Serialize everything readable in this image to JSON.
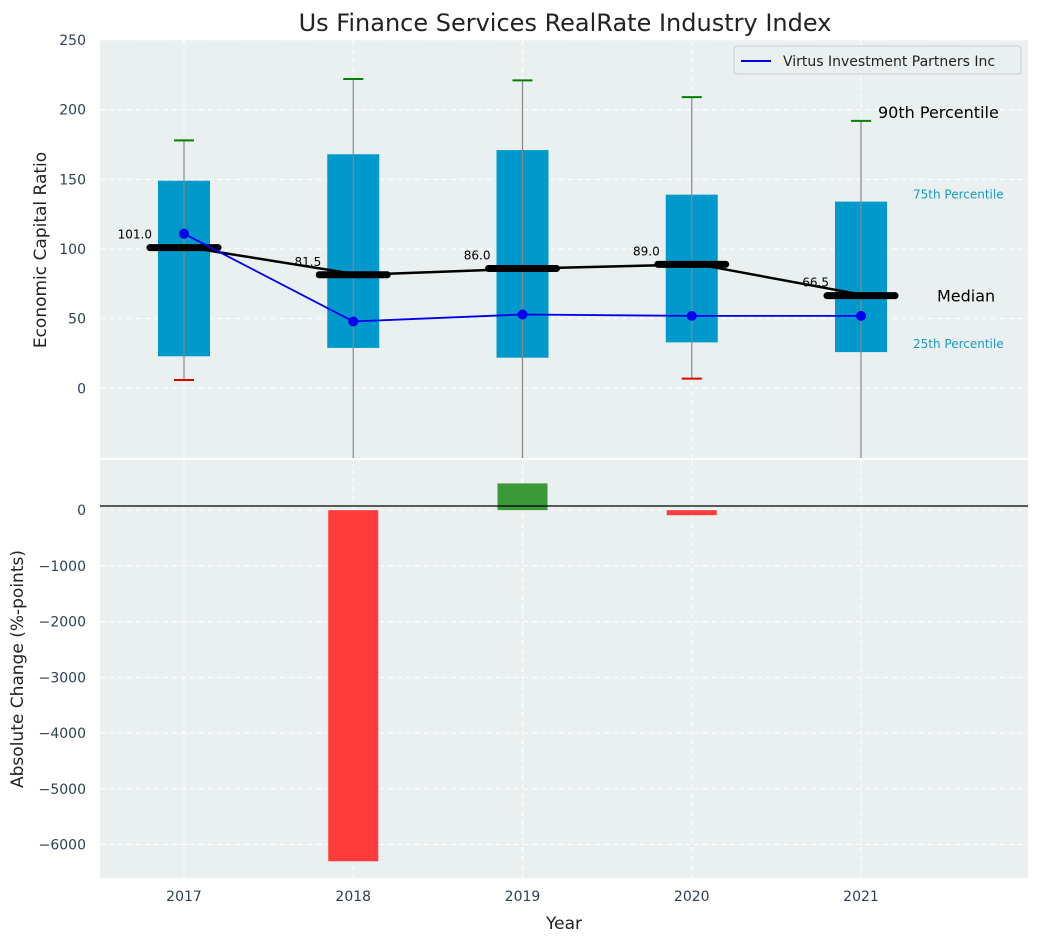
{
  "colors": {
    "panel_bg": "#eaeff0",
    "grid": "#ffffff",
    "box": "#0099cc",
    "whisker": "#888888",
    "median_line": "#000000",
    "company_line": "#0000ee",
    "cap_top": "#008000",
    "cap_low": "#dd0000",
    "pos_bar": "#3a9a3a",
    "neg_bar": "#ff3b3b",
    "annotation_small": "#1a9bbf"
  },
  "chart_data": {
    "type": "box",
    "title": "Us Finance Services RealRate Industry Index",
    "xlabel": "Year",
    "categories": [
      "2017",
      "2018",
      "2019",
      "2020",
      "2021"
    ],
    "top_panel": {
      "ylabel": "Economic Capital Ratio",
      "ylim": [
        -50,
        250
      ],
      "yticks": [
        "0",
        "50",
        "100",
        "150",
        "200",
        "250"
      ],
      "grid": true,
      "p90": [
        178,
        222,
        221,
        209,
        192
      ],
      "p75": [
        149,
        168,
        171,
        139,
        134
      ],
      "median": [
        101.0,
        81.5,
        86.0,
        89.0,
        66.5
      ],
      "median_labels": [
        "101.0",
        "81.5",
        "86.0",
        "89.0",
        "66.5"
      ],
      "p25": [
        23,
        29,
        22,
        33,
        26
      ],
      "p10": [
        6,
        null,
        null,
        7,
        null
      ],
      "company": {
        "name": "Virtus Investment Partners Inc",
        "values": [
          111,
          48,
          53,
          52,
          52
        ]
      },
      "legend_position": "top-right",
      "annotations": {
        "p90": "90th Percentile",
        "p75": "75th Percentile",
        "median": "Median",
        "p25": "25th Percentile"
      }
    },
    "bottom_panel": {
      "ylabel": "Absolute Change (%-points)",
      "ylim": [
        -6600,
        900
      ],
      "yticks": [
        "0",
        "−1000",
        "−2000",
        "−3000",
        "−4000",
        "−5000",
        "−6000"
      ],
      "grid": true,
      "values": [
        0,
        -6300,
        480,
        -90,
        0
      ]
    }
  }
}
